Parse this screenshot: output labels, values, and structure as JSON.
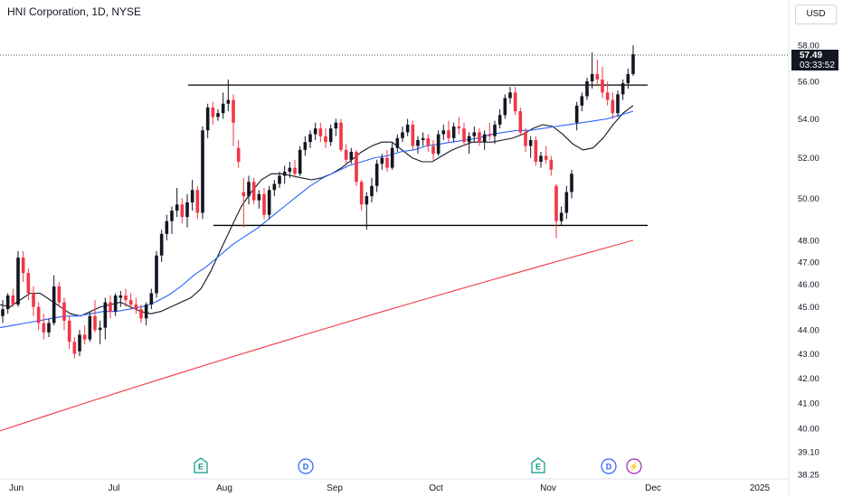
{
  "header": {
    "title": "HNI Corporation, 1D, NYSE",
    "currency": "USD"
  },
  "last_price": {
    "price": "57.49",
    "countdown": "03:33:52"
  },
  "colors": {
    "up": "#131722",
    "down": "#f23645",
    "ma_fast": "#131722",
    "ma_mid": "#2962ff",
    "ma_slow": "#f23645",
    "support_lines": "#000000"
  },
  "chart_data": {
    "type": "candlestick",
    "y_axis": {
      "scale": "log",
      "ticks": [
        58.0,
        56.0,
        54.0,
        52.0,
        50.0,
        48.0,
        47.0,
        46.0,
        45.0,
        44.0,
        43.0,
        42.0,
        41.0,
        40.0,
        39.1,
        38.25
      ],
      "tick_labels": [
        "58.00",
        "56.00",
        "54.00",
        "52.00",
        "50.00",
        "48.00",
        "47.00",
        "46.00",
        "45.00",
        "44.00",
        "43.00",
        "42.00",
        "41.00",
        "40.00",
        "39.10",
        "38.25"
      ]
    },
    "x_axis": {
      "tick_labels": [
        "Jun",
        "Jul",
        "Aug",
        "Sep",
        "Oct",
        "Nov",
        "Dec",
        "2025"
      ]
    },
    "candles": [
      [
        44.6,
        45.3,
        44.3,
        44.9
      ],
      [
        44.9,
        45.6,
        44.7,
        45.5
      ],
      [
        45.5,
        45.8,
        45.0,
        45.1
      ],
      [
        45.1,
        47.5,
        45.0,
        47.2
      ],
      [
        47.2,
        47.5,
        46.1,
        46.5
      ],
      [
        46.5,
        46.7,
        45.3,
        45.6
      ],
      [
        45.6,
        45.9,
        44.6,
        45.0
      ],
      [
        45.0,
        45.2,
        44.0,
        44.3
      ],
      [
        44.3,
        44.7,
        43.6,
        43.9
      ],
      [
        43.9,
        44.5,
        43.7,
        44.3
      ],
      [
        44.3,
        46.4,
        44.2,
        45.9
      ],
      [
        45.9,
        46.1,
        45.0,
        45.2
      ],
      [
        45.2,
        45.4,
        44.0,
        44.4
      ],
      [
        44.4,
        44.6,
        43.2,
        43.5
      ],
      [
        43.5,
        43.7,
        42.8,
        43.0
      ],
      [
        43.1,
        44.0,
        42.9,
        43.8
      ],
      [
        43.8,
        44.2,
        43.4,
        43.6
      ],
      [
        43.6,
        44.8,
        43.5,
        44.6
      ],
      [
        44.6,
        45.3,
        43.9,
        44.0
      ],
      [
        44.0,
        44.4,
        43.4,
        44.1
      ],
      [
        44.1,
        45.4,
        43.6,
        45.2
      ],
      [
        45.2,
        45.5,
        44.5,
        44.8
      ],
      [
        44.8,
        45.6,
        44.6,
        45.5
      ],
      [
        45.4,
        45.7,
        45.0,
        45.5
      ],
      [
        45.5,
        45.8,
        45.0,
        45.3
      ],
      [
        45.3,
        45.6,
        44.9,
        45.1
      ],
      [
        45.1,
        45.4,
        44.7,
        44.9
      ],
      [
        44.9,
        45.1,
        44.3,
        44.5
      ],
      [
        44.5,
        45.2,
        44.2,
        45.1
      ],
      [
        45.1,
        45.8,
        44.9,
        45.6
      ],
      [
        45.6,
        47.5,
        45.4,
        47.3
      ],
      [
        47.3,
        48.5,
        47.0,
        48.3
      ],
      [
        48.3,
        49.2,
        48.0,
        48.9
      ],
      [
        48.9,
        49.6,
        48.3,
        49.4
      ],
      [
        49.4,
        50.5,
        49.1,
        49.7
      ],
      [
        49.7,
        50.0,
        48.8,
        49.1
      ],
      [
        49.1,
        50.2,
        48.6,
        49.8
      ],
      [
        49.8,
        50.9,
        49.4,
        50.4
      ],
      [
        50.4,
        50.6,
        49.0,
        49.3
      ],
      [
        49.3,
        53.6,
        49.0,
        53.4
      ],
      [
        53.4,
        54.8,
        53.0,
        54.6
      ],
      [
        54.6,
        54.9,
        53.7,
        54.1
      ],
      [
        54.1,
        54.5,
        53.9,
        54.3
      ],
      [
        54.3,
        55.4,
        54.0,
        54.8
      ],
      [
        54.8,
        56.1,
        54.4,
        55.0
      ],
      [
        55.0,
        55.3,
        52.6,
        53.8
      ],
      [
        52.5,
        52.9,
        51.5,
        51.8
      ],
      [
        50.3,
        51.0,
        48.6,
        50.1
      ],
      [
        50.1,
        51.1,
        49.7,
        50.8
      ],
      [
        50.8,
        51.0,
        49.7,
        49.9
      ],
      [
        49.9,
        50.4,
        49.5,
        50.2
      ],
      [
        50.2,
        50.5,
        49.0,
        49.2
      ],
      [
        49.2,
        50.6,
        49.0,
        50.4
      ],
      [
        50.4,
        50.9,
        50.1,
        50.7
      ],
      [
        50.7,
        51.3,
        50.5,
        51.1
      ],
      [
        51.1,
        51.6,
        50.7,
        51.3
      ],
      [
        51.3,
        51.8,
        51.0,
        51.5
      ],
      [
        51.5,
        51.9,
        51.0,
        51.2
      ],
      [
        51.2,
        52.6,
        51.1,
        52.4
      ],
      [
        52.4,
        53.1,
        52.1,
        52.8
      ],
      [
        52.8,
        53.4,
        52.5,
        53.2
      ],
      [
        53.2,
        53.8,
        52.9,
        53.5
      ],
      [
        53.5,
        53.8,
        52.8,
        53.1
      ],
      [
        53.1,
        53.5,
        52.5,
        52.8
      ],
      [
        52.8,
        53.7,
        52.6,
        53.5
      ],
      [
        53.5,
        54.0,
        53.1,
        53.8
      ],
      [
        53.8,
        54.0,
        52.3,
        52.4
      ],
      [
        52.4,
        52.7,
        51.6,
        51.9
      ],
      [
        51.9,
        52.5,
        51.7,
        52.3
      ],
      [
        52.3,
        52.4,
        50.6,
        50.8
      ],
      [
        50.8,
        50.9,
        49.4,
        49.7
      ],
      [
        49.7,
        50.3,
        48.5,
        50.1
      ],
      [
        50.1,
        51.0,
        49.8,
        50.6
      ],
      [
        50.6,
        51.9,
        50.3,
        51.7
      ],
      [
        51.7,
        52.2,
        51.4,
        52.0
      ],
      [
        52.0,
        52.4,
        51.3,
        51.5
      ],
      [
        51.5,
        52.8,
        51.4,
        52.5
      ],
      [
        52.5,
        53.2,
        52.3,
        53.0
      ],
      [
        53.0,
        53.6,
        52.8,
        53.3
      ],
      [
        53.3,
        54.0,
        53.1,
        53.7
      ],
      [
        53.7,
        53.9,
        52.4,
        52.6
      ],
      [
        52.6,
        53.1,
        52.2,
        52.9
      ],
      [
        52.9,
        53.3,
        52.6,
        53.0
      ],
      [
        53.0,
        53.2,
        52.3,
        52.6
      ],
      [
        52.6,
        52.9,
        51.9,
        52.2
      ],
      [
        52.2,
        53.4,
        52.1,
        53.2
      ],
      [
        53.2,
        53.7,
        52.9,
        53.4
      ],
      [
        53.4,
        53.9,
        52.8,
        53.0
      ],
      [
        53.0,
        53.8,
        52.8,
        53.6
      ],
      [
        53.6,
        54.1,
        53.2,
        53.5
      ],
      [
        53.5,
        53.8,
        52.6,
        52.8
      ],
      [
        52.8,
        53.3,
        52.2,
        53.1
      ],
      [
        53.1,
        53.6,
        52.8,
        53.3
      ],
      [
        53.3,
        53.5,
        52.6,
        52.8
      ],
      [
        52.8,
        53.4,
        52.4,
        53.2
      ],
      [
        53.2,
        53.8,
        52.9,
        53.1
      ],
      [
        53.1,
        53.9,
        52.7,
        53.7
      ],
      [
        53.7,
        54.5,
        53.5,
        54.2
      ],
      [
        54.2,
        55.3,
        54.0,
        55.1
      ],
      [
        55.1,
        55.7,
        54.8,
        55.4
      ],
      [
        55.4,
        55.7,
        54.2,
        54.4
      ],
      [
        54.4,
        54.6,
        53.1,
        53.3
      ],
      [
        53.3,
        53.5,
        52.3,
        52.6
      ],
      [
        52.6,
        53.1,
        52.0,
        52.9
      ],
      [
        52.9,
        53.1,
        51.6,
        51.8
      ],
      [
        51.8,
        52.3,
        51.5,
        52.1
      ],
      [
        52.1,
        52.6,
        51.7,
        51.9
      ],
      [
        51.9,
        52.1,
        51.1,
        51.4
      ],
      [
        50.6,
        50.7,
        48.1,
        48.9
      ],
      [
        48.9,
        49.6,
        48.7,
        49.3
      ],
      [
        49.3,
        50.6,
        49.0,
        50.3
      ],
      [
        50.3,
        51.4,
        50.0,
        51.2
      ],
      [
        53.8,
        54.9,
        53.4,
        54.7
      ],
      [
        54.7,
        55.4,
        54.4,
        55.2
      ],
      [
        55.2,
        56.2,
        55.0,
        56.0
      ],
      [
        56.0,
        57.6,
        55.6,
        56.4
      ],
      [
        56.4,
        57.2,
        55.8,
        56.1
      ],
      [
        56.1,
        56.8,
        55.1,
        55.4
      ],
      [
        55.4,
        56.0,
        54.7,
        55.0
      ],
      [
        55.0,
        55.4,
        54.0,
        54.3
      ],
      [
        54.3,
        55.5,
        54.1,
        55.3
      ],
      [
        55.3,
        56.1,
        55.0,
        55.9
      ],
      [
        55.9,
        56.7,
        55.6,
        56.4
      ],
      [
        56.4,
        58.0,
        56.3,
        57.49
      ]
    ],
    "moving_averages": [
      {
        "color": "#131722",
        "values": [
          45.1,
          45.0,
          45.3,
          45.6,
          45.6,
          45.3,
          45.0,
          44.7,
          44.6,
          44.8,
          45.0,
          45.1,
          45.2,
          45.0,
          44.8,
          44.7,
          44.8,
          45.0,
          45.2,
          45.4,
          45.8,
          46.6,
          47.6,
          48.6,
          49.6,
          50.3,
          50.9,
          51.2,
          51.2,
          51.1,
          51.0,
          50.9,
          51.0,
          51.2,
          51.5,
          51.9,
          52.3,
          52.6,
          52.8,
          52.8,
          52.4,
          52.0,
          51.8,
          51.8,
          52.1,
          52.4,
          52.6,
          52.8,
          52.8,
          52.8,
          52.9,
          53.0,
          53.2,
          53.5,
          53.7,
          53.6,
          53.2,
          52.7,
          52.4,
          52.5,
          53.0,
          53.7,
          54.3,
          54.7
        ]
      },
      {
        "color": "#2962ff",
        "values": [
          44.1,
          44.2,
          44.3,
          44.4,
          44.5,
          44.6,
          44.6,
          44.7,
          44.8,
          44.8,
          44.9,
          45.0,
          45.2,
          45.5,
          45.9,
          46.4,
          46.8,
          47.3,
          47.8,
          48.2,
          48.6,
          49.1,
          49.6,
          50.1,
          50.6,
          51.0,
          51.3,
          51.6,
          51.8,
          52.0,
          52.1,
          52.3,
          52.4,
          52.6,
          52.7,
          52.8,
          52.9,
          53.0,
          53.2,
          53.3,
          53.4,
          53.4,
          53.5,
          53.6,
          53.7,
          53.8,
          53.9,
          54.0,
          54.2,
          54.4
        ]
      },
      {
        "color": "#f23645",
        "values": [
          39.9,
          40.2,
          40.5,
          40.8,
          41.1,
          41.4,
          41.7,
          42.0,
          42.3,
          42.6,
          42.9,
          43.2,
          43.5,
          43.8,
          44.1,
          44.4,
          44.7,
          45.0,
          45.3,
          45.6,
          45.9,
          46.2,
          46.5,
          46.8,
          47.1,
          47.4,
          47.7,
          48.0
        ]
      }
    ],
    "horizontal_lines": [
      55.8,
      48.7
    ],
    "events": [
      {
        "label": "E",
        "type": "earnings"
      },
      {
        "label": "D",
        "type": "dividend"
      },
      {
        "label": "E",
        "type": "earnings"
      },
      {
        "label": "D",
        "type": "dividend"
      },
      {
        "label": "⚡",
        "type": "split"
      }
    ],
    "grid": false
  }
}
